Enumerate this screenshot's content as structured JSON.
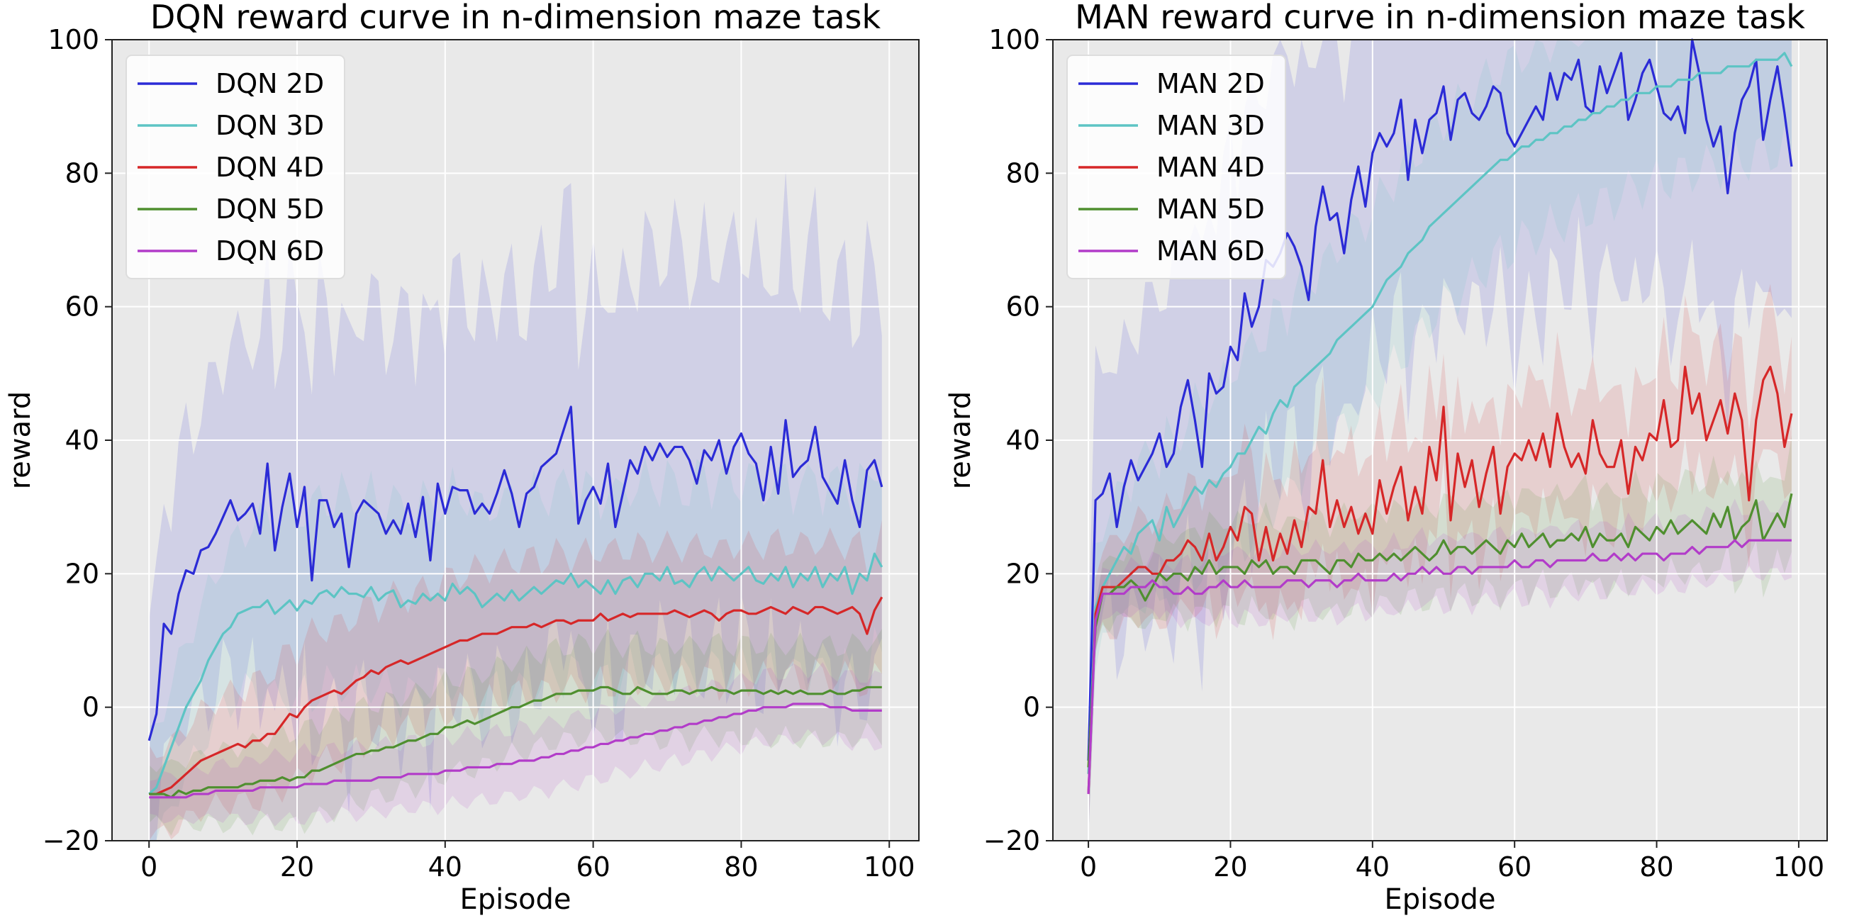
{
  "chart_data": [
    {
      "type": "line",
      "title": "DQN reward curve in n-dimension maze task",
      "xlabel": "Episode",
      "ylabel": "reward",
      "xlim": [
        -5,
        104
      ],
      "ylim": [
        -20,
        100
      ],
      "xticks": [
        0,
        20,
        40,
        60,
        80,
        100
      ],
      "yticks": [
        -20,
        0,
        20,
        40,
        60,
        80,
        100
      ],
      "grid": true,
      "legend_position": "top-left",
      "x": "0..99",
      "series": [
        {
          "name": "DQN 2D",
          "color": "#2b2bd6",
          "values": [
            -5,
            -1,
            12.5,
            11,
            17,
            20.5,
            20,
            23.5,
            24,
            26,
            28.5,
            31,
            28,
            29,
            30.5,
            26,
            36.5,
            23.5,
            30,
            35,
            27,
            33,
            19,
            31,
            31,
            27,
            29,
            21,
            29,
            31,
            30,
            29,
            26,
            28,
            26,
            30.5,
            25.5,
            31.5,
            22,
            33.5,
            29,
            33,
            32.5,
            32.5,
            29,
            30.5,
            29,
            32,
            35.5,
            32,
            27,
            32,
            33,
            36,
            37,
            38,
            41.5,
            45,
            27.5,
            31,
            33,
            30.5,
            36.5,
            27,
            32,
            37,
            35,
            39,
            37,
            39.5,
            37.5,
            39,
            39,
            37,
            33.5,
            38.5,
            37,
            40,
            35,
            39,
            41,
            38,
            36.5,
            31,
            39,
            32,
            43,
            34.5,
            36,
            37,
            42,
            34.5,
            32.5,
            30.5,
            37,
            31,
            27,
            35.5,
            37,
            33
          ]
        },
        {
          "name": "DQN 3D",
          "color": "#5dc4c4",
          "values": [
            -13,
            -12,
            -9,
            -6,
            -3,
            0,
            2,
            4,
            7,
            9,
            11,
            12,
            14,
            14.5,
            15,
            15,
            16,
            14,
            15,
            16,
            14.5,
            16,
            15.5,
            17,
            17.5,
            16.5,
            18,
            17,
            17,
            16.5,
            18,
            16,
            17,
            17.5,
            15,
            16,
            15.5,
            17,
            16,
            17,
            16,
            18.5,
            17,
            18,
            17,
            15,
            16,
            17,
            16,
            17.5,
            16,
            17,
            18,
            17,
            18,
            19,
            18.5,
            20,
            18,
            19,
            18,
            17,
            19,
            17,
            19,
            19.5,
            18,
            20,
            20,
            19,
            21,
            18.5,
            19,
            18,
            20,
            21,
            19,
            21,
            20,
            19,
            20,
            21,
            19,
            18.5,
            20,
            19,
            21,
            18,
            20,
            19,
            21,
            18,
            20,
            19,
            21,
            17,
            20,
            19,
            23,
            21
          ]
        },
        {
          "name": "DQN 4D",
          "color": "#d62728",
          "values": [
            -13,
            -13,
            -12.5,
            -12,
            -11,
            -10,
            -9,
            -8,
            -7.5,
            -7,
            -6.5,
            -6,
            -5.5,
            -6,
            -5,
            -5,
            -4,
            -4,
            -2.5,
            -1,
            -1.5,
            0,
            1,
            1.5,
            2,
            2.5,
            2,
            3,
            4,
            4.5,
            5.5,
            5,
            6,
            6.5,
            7,
            6.5,
            7,
            7.5,
            8,
            8.5,
            9,
            9.5,
            10,
            10,
            10.5,
            11,
            11,
            11,
            11.5,
            12,
            12,
            12,
            12.5,
            12,
            12.5,
            13,
            13,
            12.5,
            13,
            13,
            13,
            14,
            13,
            13.5,
            14,
            13.5,
            14,
            14,
            14,
            14,
            14,
            14.5,
            14,
            13.5,
            14,
            14.5,
            14,
            13,
            14,
            14.5,
            14.5,
            14,
            14,
            14.5,
            15,
            14.5,
            14,
            15,
            14.5,
            14,
            15,
            15,
            14.5,
            14,
            14.5,
            15,
            14,
            11,
            14.5,
            16.5
          ]
        },
        {
          "name": "DQN 5D",
          "color": "#4f8f2f",
          "values": [
            -13,
            -13,
            -13,
            -13.5,
            -12.5,
            -13,
            -12.5,
            -12.5,
            -12,
            -12,
            -12,
            -12,
            -12,
            -11.5,
            -11.5,
            -11,
            -11,
            -11,
            -10.5,
            -11,
            -10.5,
            -10.5,
            -9.5,
            -9.5,
            -9,
            -8.5,
            -8,
            -7.5,
            -7,
            -7,
            -6.5,
            -6.5,
            -6,
            -6,
            -5.5,
            -5,
            -5,
            -4.5,
            -4,
            -4,
            -3,
            -3,
            -2.5,
            -2,
            -2.5,
            -2,
            -1.5,
            -1,
            -0.5,
            0,
            0,
            0.5,
            1,
            1,
            1.5,
            2,
            2,
            2,
            2.5,
            2.5,
            2.5,
            3,
            3,
            2.5,
            2,
            2,
            3,
            2.5,
            2,
            2,
            2,
            2.5,
            2.5,
            2,
            2.5,
            2.5,
            3,
            2.5,
            2.5,
            2,
            2.5,
            2.5,
            2.5,
            2,
            2.5,
            2,
            2.5,
            2,
            2.5,
            2,
            2,
            2,
            2.5,
            2,
            2,
            2.5,
            2.5,
            3,
            3,
            3
          ]
        },
        {
          "name": "DQN 6D",
          "color": "#b23cc9",
          "values": [
            -13.5,
            -13.5,
            -13.5,
            -13.5,
            -13.5,
            -13.5,
            -13,
            -13,
            -13,
            -12.5,
            -12.5,
            -12.5,
            -12.5,
            -12.5,
            -12.5,
            -12,
            -12,
            -12,
            -12,
            -12,
            -12,
            -11.5,
            -11.5,
            -11.5,
            -11.5,
            -11,
            -11,
            -11,
            -11,
            -11,
            -11,
            -10.5,
            -10.5,
            -10.5,
            -10.5,
            -10,
            -10,
            -10,
            -10,
            -10,
            -9.5,
            -9.5,
            -9.5,
            -9,
            -9,
            -9,
            -9,
            -8.5,
            -8.5,
            -8.5,
            -8,
            -8,
            -8,
            -7.5,
            -7.5,
            -7,
            -7,
            -6.5,
            -6.5,
            -6,
            -6,
            -5.5,
            -5.5,
            -5,
            -5,
            -4.5,
            -4.5,
            -4,
            -4,
            -3.5,
            -3.5,
            -3,
            -3,
            -2.5,
            -2.5,
            -2,
            -2,
            -1.5,
            -1.5,
            -1,
            -1,
            -0.5,
            -0.5,
            0,
            0,
            0,
            0,
            0.5,
            0.5,
            0.5,
            0.5,
            0.5,
            0,
            0,
            0,
            -0.5,
            -0.5,
            -0.5,
            -0.5,
            -0.5
          ]
        }
      ]
    },
    {
      "type": "line",
      "title": "MAN reward curve in n-dimension maze task",
      "xlabel": "Episode",
      "ylabel": "reward",
      "xlim": [
        -5,
        104
      ],
      "ylim": [
        -20,
        100
      ],
      "xticks": [
        0,
        20,
        40,
        60,
        80,
        100
      ],
      "yticks": [
        -20,
        0,
        20,
        40,
        60,
        80,
        100
      ],
      "grid": true,
      "legend_position": "top-left",
      "x": "0..99",
      "series": [
        {
          "name": "MAN 2D",
          "color": "#2b2bd6",
          "values": [
            -8,
            31,
            32,
            35,
            27,
            33,
            37,
            34,
            36,
            38,
            41,
            36,
            38,
            45,
            49,
            43,
            36,
            50,
            47,
            48,
            54,
            52,
            62,
            57,
            60,
            67,
            66,
            68,
            71,
            69,
            66,
            61,
            72,
            78,
            73,
            74,
            68,
            76,
            81,
            75,
            83,
            86,
            84,
            86,
            91,
            79,
            88,
            83,
            88,
            89,
            93,
            85,
            91,
            92,
            89,
            88,
            90,
            93,
            92,
            86,
            84,
            86,
            88,
            90,
            88,
            95,
            91,
            95,
            94,
            97,
            90,
            89,
            96,
            92,
            95,
            98,
            88,
            91,
            95,
            97,
            93,
            89,
            88,
            90,
            86,
            100,
            95,
            88,
            84,
            87,
            77,
            86,
            91,
            93,
            97,
            85,
            91,
            96,
            89,
            81
          ]
        },
        {
          "name": "MAN 3D",
          "color": "#5dc4c4",
          "values": [
            -10,
            15,
            18,
            20,
            22,
            24,
            23,
            26,
            27,
            28,
            25,
            30,
            27,
            29,
            31,
            33,
            32,
            34,
            33,
            35,
            36,
            38,
            38,
            40,
            42,
            41,
            44,
            46,
            45,
            48,
            49,
            50,
            51,
            52,
            53,
            55,
            56,
            57,
            58,
            59,
            60,
            62,
            64,
            65,
            66,
            68,
            69,
            70,
            72,
            73,
            74,
            75,
            76,
            77,
            78,
            79,
            80,
            81,
            82,
            82,
            83,
            84,
            84,
            85,
            85,
            86,
            86,
            87,
            87,
            88,
            88,
            89,
            89,
            90,
            90,
            91,
            91,
            92,
            92,
            92,
            93,
            93,
            93,
            94,
            94,
            94,
            95,
            95,
            95,
            95,
            96,
            96,
            96,
            96,
            97,
            97,
            97,
            97,
            98,
            96
          ]
        },
        {
          "name": "MAN 4D",
          "color": "#d62728",
          "values": [
            -13,
            14,
            18,
            18,
            18,
            19,
            20,
            21,
            21,
            20,
            20,
            22,
            22,
            23,
            25,
            24,
            22,
            26,
            22,
            24,
            27,
            25,
            30,
            29,
            22,
            27,
            22,
            26,
            23,
            28,
            24,
            30,
            29,
            37,
            27,
            31,
            27,
            30,
            26,
            29,
            26,
            34,
            29,
            33,
            36,
            28,
            33,
            29,
            39,
            34,
            45,
            28,
            38,
            33,
            37,
            30,
            35,
            39,
            29,
            36,
            38,
            37,
            40,
            37,
            41,
            36,
            44,
            39,
            36,
            38,
            35,
            43,
            38,
            36,
            36,
            40,
            32,
            39,
            37,
            41,
            40,
            46,
            39,
            40,
            51,
            44,
            47,
            40,
            43,
            46,
            41,
            47,
            43,
            31,
            43,
            49,
            51,
            47,
            39,
            44
          ]
        },
        {
          "name": "MAN 5D",
          "color": "#4f8f2f",
          "values": [
            -9,
            12,
            17,
            17,
            18,
            18,
            19,
            18,
            16,
            18,
            20,
            19,
            20,
            20,
            19,
            21,
            20,
            22,
            20,
            21,
            21,
            21,
            20,
            22,
            21,
            22,
            20,
            21,
            21,
            20,
            22,
            22,
            22,
            21,
            20,
            22,
            22,
            21,
            23,
            22,
            22,
            23,
            22,
            23,
            22,
            23,
            24,
            23,
            22,
            23,
            25,
            23,
            24,
            24,
            23,
            24,
            25,
            24,
            23,
            25,
            24,
            26,
            24,
            25,
            26,
            24,
            25,
            25,
            26,
            25,
            27,
            24,
            26,
            25,
            25,
            26,
            24,
            27,
            26,
            25,
            27,
            26,
            28,
            26,
            27,
            28,
            27,
            26,
            29,
            27,
            30,
            25,
            27,
            28,
            31,
            25,
            27,
            29,
            27,
            32
          ]
        },
        {
          "name": "MAN 6D",
          "color": "#b23cc9",
          "values": [
            -13,
            13,
            17,
            17,
            17,
            17,
            18,
            18,
            18,
            19,
            18,
            18,
            17,
            17,
            18,
            17,
            17,
            18,
            18,
            19,
            18,
            18,
            19,
            18,
            18,
            18,
            18,
            18,
            19,
            19,
            19,
            18,
            19,
            19,
            19,
            18,
            19,
            19,
            20,
            19,
            19,
            19,
            19,
            20,
            19,
            20,
            20,
            21,
            20,
            21,
            20,
            20,
            21,
            21,
            20,
            21,
            21,
            21,
            21,
            21,
            22,
            21,
            21,
            22,
            22,
            21,
            22,
            22,
            22,
            22,
            22,
            23,
            22,
            22,
            23,
            22,
            23,
            22,
            23,
            23,
            23,
            22,
            23,
            23,
            23,
            24,
            23,
            24,
            24,
            24,
            24,
            25,
            24,
            25,
            25,
            25,
            25,
            25,
            25,
            25
          ]
        }
      ]
    }
  ]
}
